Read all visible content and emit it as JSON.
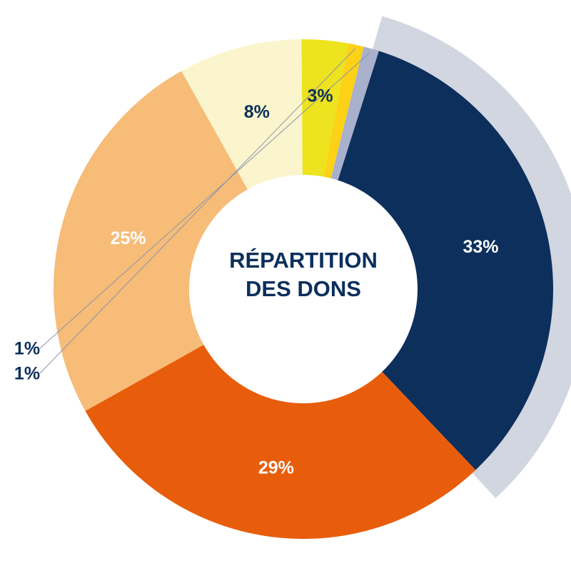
{
  "chart_data": {
    "type": "donut",
    "title": "RÉPARTITION DES DONS",
    "values": [
      33,
      29,
      25,
      8,
      3,
      1,
      1
    ],
    "value_labels": [
      "33%",
      "29%",
      "25%",
      "8%",
      "3%",
      "1%",
      "1%"
    ],
    "colors": [
      "#0c2f5c",
      "#e85d0c",
      "#f6bc78",
      "#faf5cc",
      "#ede31e",
      "#fcd116",
      "#a9b0cc"
    ]
  }
}
